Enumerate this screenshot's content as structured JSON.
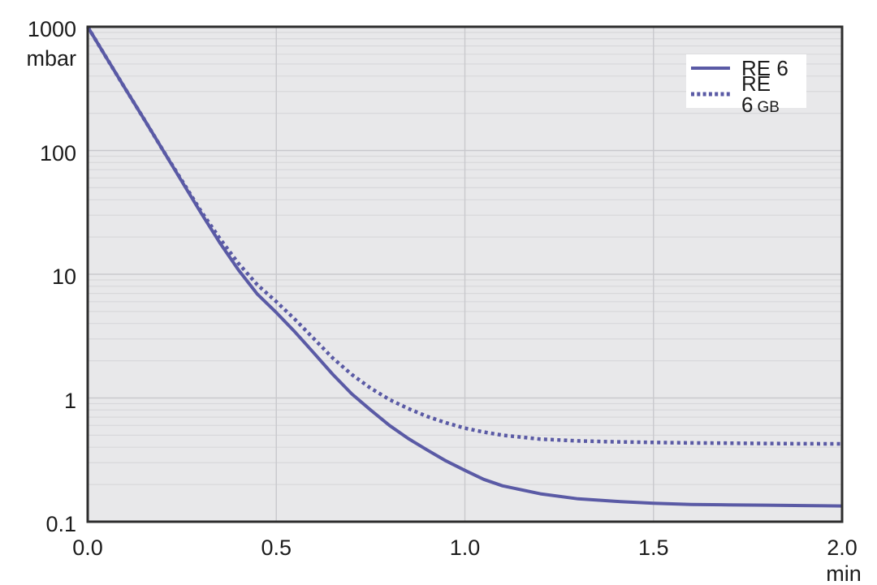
{
  "chart_data": {
    "type": "line",
    "title": "",
    "xlabel": "min",
    "ylabel": "mbar",
    "x_range": [
      0.0,
      2.0
    ],
    "y_range": [
      0.1,
      1000
    ],
    "y_scale": "log",
    "grid": "major plus log minors, gray plot background",
    "legend_position": "top-right",
    "x_ticks": [
      {
        "value": 0.0,
        "label": "0.0"
      },
      {
        "value": 0.5,
        "label": "0.5"
      },
      {
        "value": 1.0,
        "label": "1.0"
      },
      {
        "value": 1.5,
        "label": "1.5"
      },
      {
        "value": 2.0,
        "label": "2.0"
      }
    ],
    "y_ticks": [
      {
        "value": 1000,
        "label": "1000"
      },
      {
        "value": 100,
        "label": "100"
      },
      {
        "value": 10,
        "label": "10"
      },
      {
        "value": 1,
        "label": "1"
      },
      {
        "value": 0.1,
        "label": "0.1"
      }
    ],
    "x_grid_values": [
      0.5,
      1.0,
      1.5
    ],
    "series": [
      {
        "name": "RE 6",
        "style": "solid",
        "color": "#5a5aa5",
        "points": [
          [
            0.0,
            1000
          ],
          [
            0.05,
            560
          ],
          [
            0.1,
            315
          ],
          [
            0.15,
            178
          ],
          [
            0.2,
            100
          ],
          [
            0.25,
            56
          ],
          [
            0.3,
            31.5
          ],
          [
            0.35,
            18
          ],
          [
            0.4,
            10.8
          ],
          [
            0.45,
            6.9
          ],
          [
            0.5,
            4.9
          ],
          [
            0.55,
            3.4
          ],
          [
            0.6,
            2.3
          ],
          [
            0.65,
            1.55
          ],
          [
            0.7,
            1.08
          ],
          [
            0.75,
            0.8
          ],
          [
            0.8,
            0.6
          ],
          [
            0.85,
            0.47
          ],
          [
            0.9,
            0.38
          ],
          [
            0.95,
            0.31
          ],
          [
            1.0,
            0.26
          ],
          [
            1.05,
            0.22
          ],
          [
            1.1,
            0.195
          ],
          [
            1.2,
            0.168
          ],
          [
            1.3,
            0.153
          ],
          [
            1.4,
            0.146
          ],
          [
            1.5,
            0.141
          ],
          [
            1.6,
            0.138
          ],
          [
            1.7,
            0.137
          ],
          [
            1.8,
            0.136
          ],
          [
            1.9,
            0.135
          ],
          [
            2.0,
            0.134
          ]
        ]
      },
      {
        "name": "RE 6 GB",
        "style": "dotted",
        "color": "#5a5aa5",
        "points": [
          [
            0.0,
            1000
          ],
          [
            0.05,
            560
          ],
          [
            0.1,
            315
          ],
          [
            0.15,
            178
          ],
          [
            0.2,
            100
          ],
          [
            0.25,
            57
          ],
          [
            0.3,
            32.5
          ],
          [
            0.35,
            19.5
          ],
          [
            0.4,
            12.2
          ],
          [
            0.45,
            8.2
          ],
          [
            0.5,
            6.0
          ],
          [
            0.55,
            4.3
          ],
          [
            0.6,
            3.0
          ],
          [
            0.65,
            2.1
          ],
          [
            0.7,
            1.55
          ],
          [
            0.75,
            1.2
          ],
          [
            0.8,
            0.97
          ],
          [
            0.85,
            0.82
          ],
          [
            0.9,
            0.71
          ],
          [
            0.95,
            0.63
          ],
          [
            1.0,
            0.57
          ],
          [
            1.05,
            0.53
          ],
          [
            1.1,
            0.5
          ],
          [
            1.2,
            0.465
          ],
          [
            1.3,
            0.45
          ],
          [
            1.4,
            0.442
          ],
          [
            1.5,
            0.437
          ],
          [
            1.6,
            0.433
          ],
          [
            1.7,
            0.431
          ],
          [
            1.8,
            0.429
          ],
          [
            1.9,
            0.427
          ],
          [
            2.0,
            0.426
          ]
        ]
      }
    ]
  },
  "legend": {
    "items": [
      {
        "text": "RE 6",
        "sub": ""
      },
      {
        "text": "RE 6",
        "sub": "GB"
      }
    ]
  },
  "colors": {
    "line": "#5a5aa5",
    "plot_bg": "#e8e8ea",
    "grid_minor": "#d8d8db",
    "grid_major": "#c9c9cd",
    "frame": "#2e2e2e",
    "text": "#1c1c1c",
    "page_bg": "#ffffff",
    "legend_bg": "#ffffff"
  }
}
